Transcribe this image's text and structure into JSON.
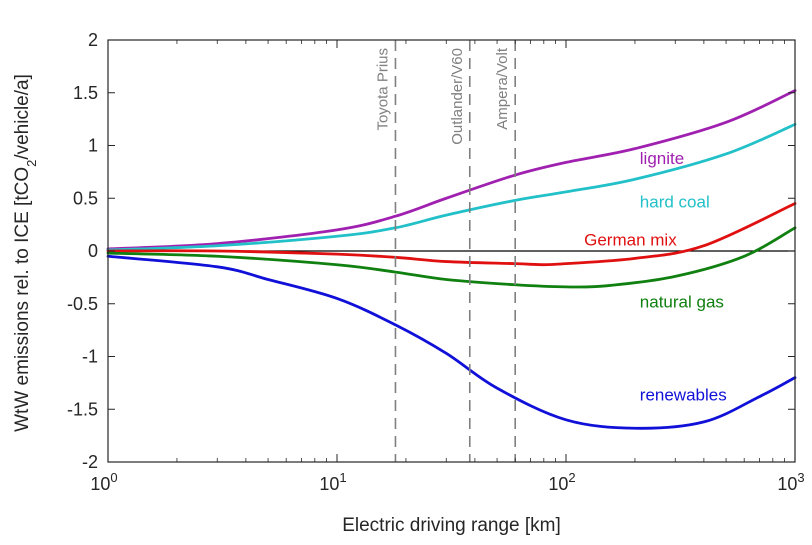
{
  "chart_data": {
    "type": "line",
    "x_scale": "log",
    "xlim": [
      1,
      1000
    ],
    "ylim": [
      -2,
      2
    ],
    "xlabel": "Electric driving range [km]",
    "ylabel_prefix": "WtW emissions rel. to ICE [tCO",
    "ylabel_sub": "2",
    "ylabel_suffix": "/vehicle/a]",
    "x_ticks": [
      {
        "value": 1,
        "base": "10",
        "exp": "0"
      },
      {
        "value": 10,
        "base": "10",
        "exp": "1"
      },
      {
        "value": 100,
        "base": "10",
        "exp": "2"
      },
      {
        "value": 1000,
        "base": "10",
        "exp": "3"
      }
    ],
    "y_ticks": [
      {
        "value": 2,
        "label": "2"
      },
      {
        "value": 1.5,
        "label": "1.5"
      },
      {
        "value": 1,
        "label": "1"
      },
      {
        "value": 0.5,
        "label": "0.5"
      },
      {
        "value": 0,
        "label": "0"
      },
      {
        "value": -0.5,
        "label": "-0.5"
      },
      {
        "value": -1,
        "label": "-1"
      },
      {
        "value": -1.5,
        "label": "-1.5"
      },
      {
        "value": -2,
        "label": "-2"
      }
    ],
    "grid": false,
    "reference_line_y": 0,
    "vlines": [
      {
        "x": 18,
        "label": "Toyota Prius"
      },
      {
        "x": 38,
        "label": "Outlander/V60"
      },
      {
        "x": 60,
        "label": "Ampera/Volt"
      }
    ],
    "series": [
      {
        "name": "lignite",
        "color": "#a020b0",
        "x": [
          1,
          3,
          10,
          18,
          30,
          60,
          100,
          200,
          500,
          1000
        ],
        "y": [
          0.02,
          0.07,
          0.2,
          0.33,
          0.5,
          0.72,
          0.84,
          0.97,
          1.22,
          1.52
        ]
      },
      {
        "name": "hard coal",
        "color": "#22c0c8",
        "x": [
          1,
          3,
          10,
          18,
          30,
          60,
          100,
          200,
          500,
          1000
        ],
        "y": [
          0.01,
          0.05,
          0.14,
          0.22,
          0.34,
          0.48,
          0.56,
          0.68,
          0.92,
          1.2
        ]
      },
      {
        "name": "German mix",
        "color": "#e01010",
        "x": [
          1,
          3,
          10,
          18,
          30,
          60,
          80,
          100,
          200,
          400,
          1000
        ],
        "y": [
          0.0,
          0.0,
          -0.03,
          -0.06,
          -0.1,
          -0.12,
          -0.13,
          -0.12,
          -0.07,
          0.05,
          0.45
        ]
      },
      {
        "name": "natural gas",
        "color": "#108010",
        "x": [
          1,
          3,
          10,
          18,
          30,
          60,
          100,
          150,
          300,
          600,
          1000
        ],
        "y": [
          -0.02,
          -0.05,
          -0.13,
          -0.2,
          -0.27,
          -0.32,
          -0.34,
          -0.33,
          -0.24,
          -0.05,
          0.22
        ]
      },
      {
        "name": "renewables",
        "color": "#1010d8",
        "x": [
          1,
          3,
          5,
          10,
          18,
          30,
          50,
          100,
          200,
          400,
          700,
          1000
        ],
        "y": [
          -0.05,
          -0.15,
          -0.27,
          -0.45,
          -0.7,
          -0.97,
          -1.3,
          -1.6,
          -1.68,
          -1.62,
          -1.38,
          -1.2
        ]
      }
    ],
    "annotations": [
      {
        "text": "lignite",
        "color": "#a020b0",
        "x": 210,
        "y": 0.88
      },
      {
        "text": "hard coal",
        "color": "#22c0c8",
        "x": 210,
        "y": 0.47
      },
      {
        "text": "German mix",
        "color": "#e01010",
        "x": 120,
        "y": 0.11
      },
      {
        "text": "natural gas",
        "color": "#108010",
        "x": 210,
        "y": -0.48
      },
      {
        "text": "renewables",
        "color": "#1010d8",
        "x": 210,
        "y": -1.36
      }
    ],
    "vline_color": "#808080"
  }
}
